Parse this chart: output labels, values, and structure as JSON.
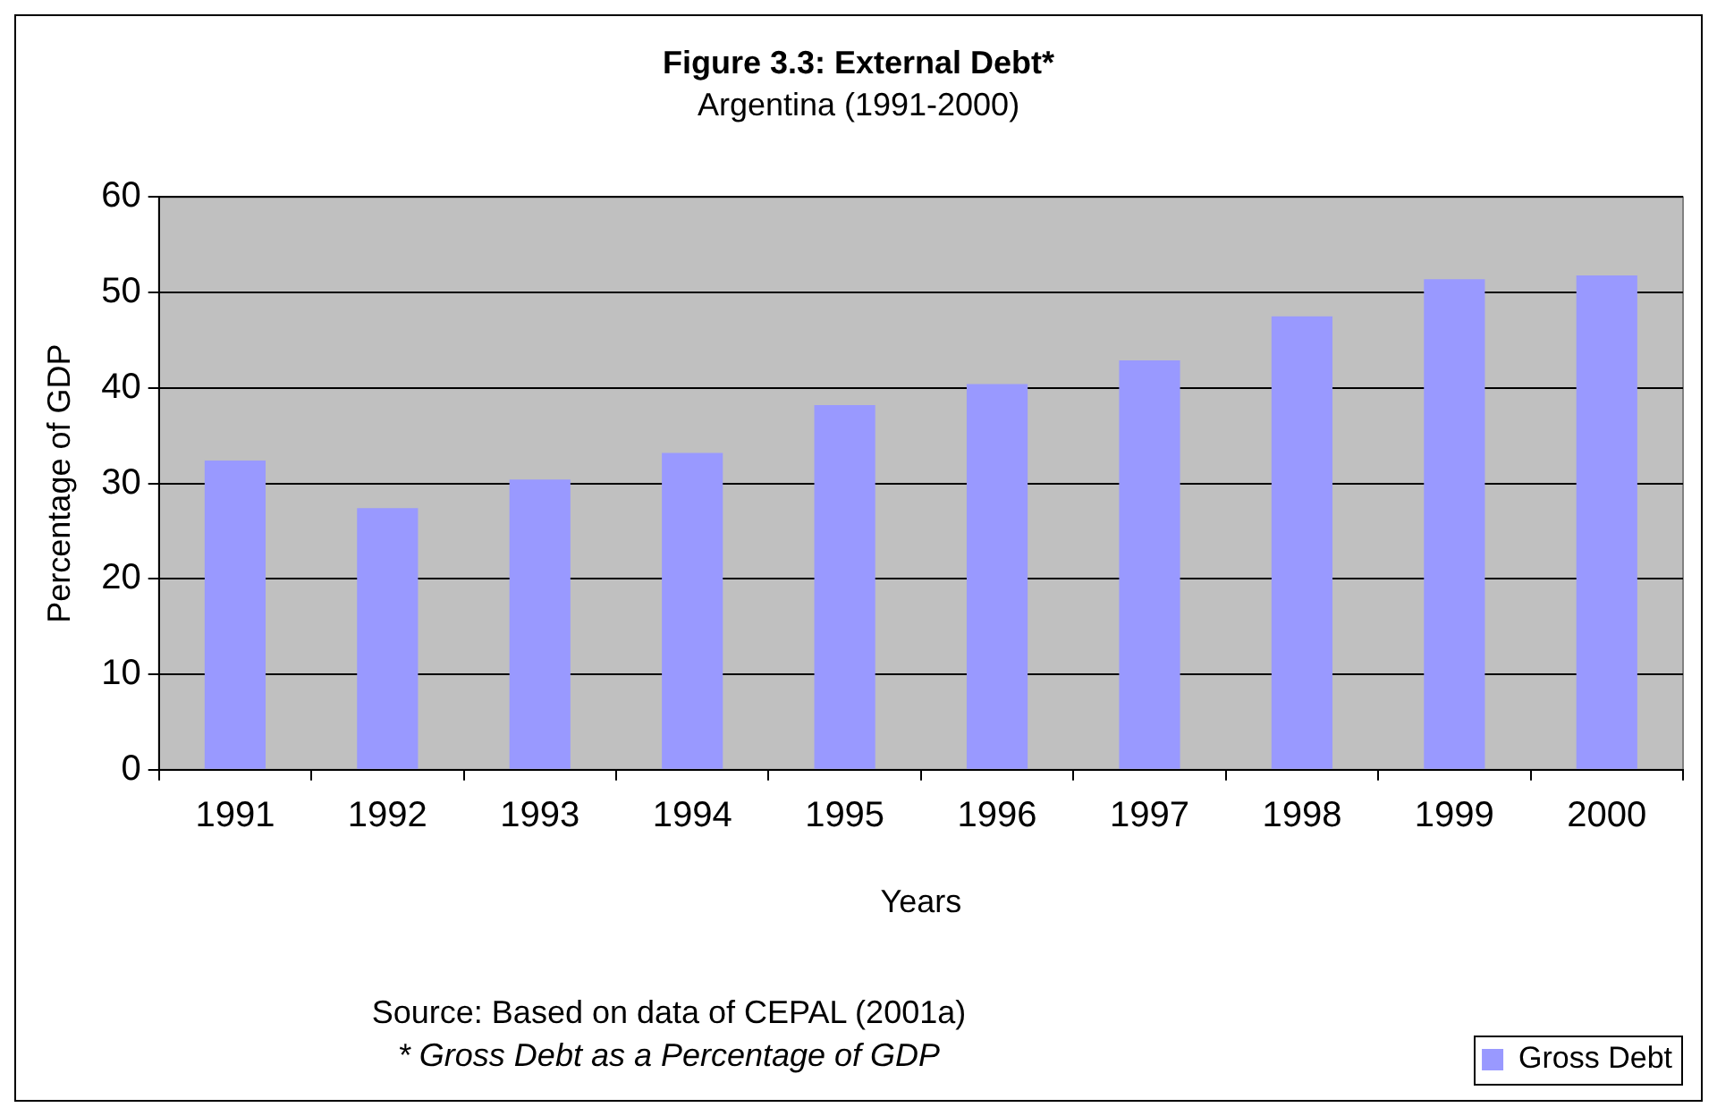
{
  "chart_data": {
    "type": "bar",
    "title": "Figure 3.3: External Debt*",
    "subtitle": "Argentina (1991-2000)",
    "xlabel": "Years",
    "ylabel": "Percentage of GDP",
    "categories": [
      "1991",
      "1992",
      "1993",
      "1994",
      "1995",
      "1996",
      "1997",
      "1998",
      "1999",
      "2000"
    ],
    "series": [
      {
        "name": "Gross Debt",
        "color": "#9999ff",
        "values": [
          32.4,
          27.4,
          30.4,
          33.2,
          38.2,
          40.4,
          42.9,
          47.5,
          51.4,
          51.8
        ]
      }
    ],
    "ylim": [
      0,
      60
    ],
    "yticks": [
      0,
      10,
      20,
      30,
      40,
      50,
      60
    ],
    "grid": "y",
    "legend": "bottom right",
    "annotations": [
      "Source: Based on data of CEPAL (2001a)",
      "* Gross Debt as a Percentage of GDP"
    ]
  }
}
